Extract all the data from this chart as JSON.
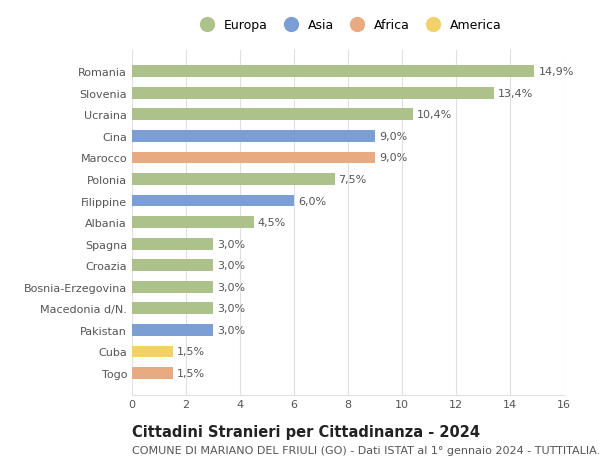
{
  "countries": [
    "Romania",
    "Slovenia",
    "Ucraina",
    "Cina",
    "Marocco",
    "Polonia",
    "Filippine",
    "Albania",
    "Spagna",
    "Croazia",
    "Bosnia-Erzegovina",
    "Macedonia d/N.",
    "Pakistan",
    "Cuba",
    "Togo"
  ],
  "values": [
    14.9,
    13.4,
    10.4,
    9.0,
    9.0,
    7.5,
    6.0,
    4.5,
    3.0,
    3.0,
    3.0,
    3.0,
    3.0,
    1.5,
    1.5
  ],
  "continents": [
    "Europa",
    "Europa",
    "Europa",
    "Asia",
    "Africa",
    "Europa",
    "Asia",
    "Europa",
    "Europa",
    "Europa",
    "Europa",
    "Europa",
    "Asia",
    "America",
    "Africa"
  ],
  "continent_colors": {
    "Europa": "#adc18a",
    "Asia": "#7b9fd4",
    "Africa": "#e8aa80",
    "America": "#f2d06a"
  },
  "legend_order": [
    "Europa",
    "Asia",
    "Africa",
    "America"
  ],
  "xlim": [
    0,
    16
  ],
  "xticks": [
    0,
    2,
    4,
    6,
    8,
    10,
    12,
    14,
    16
  ],
  "title": "Cittadini Stranieri per Cittadinanza - 2024",
  "subtitle": "COMUNE DI MARIANO DEL FRIULI (GO) - Dati ISTAT al 1° gennaio 2024 - TUTTITALIA.IT",
  "title_fontsize": 10.5,
  "subtitle_fontsize": 8,
  "bar_height": 0.55,
  "background_color": "#ffffff",
  "grid_color": "#e0e0e0",
  "label_fontsize": 8,
  "tick_fontsize": 8,
  "legend_fontsize": 9
}
